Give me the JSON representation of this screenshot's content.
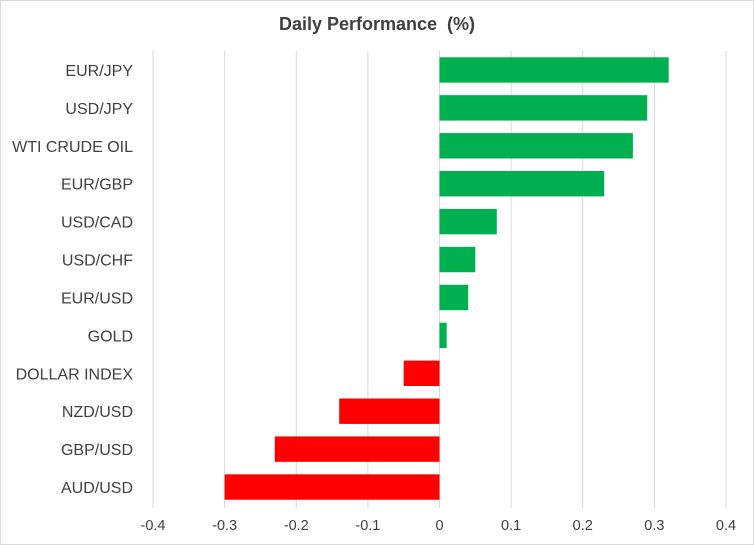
{
  "chart_data": {
    "type": "bar",
    "orientation": "horizontal",
    "title": "Daily Performance  (%)",
    "xlabel": "",
    "ylabel": "",
    "xlim": [
      -0.4,
      0.4
    ],
    "xticks": [
      "-0.4",
      "-0.3",
      "-0.2",
      "-0.1",
      "0",
      "0.1",
      "0.2",
      "0.3",
      "0.4"
    ],
    "grid": "vertical",
    "categories": [
      "EUR/JPY",
      "USD/JPY",
      "WTI CRUDE OIL",
      "EUR/GBP",
      "USD/CAD",
      "USD/CHF",
      "EUR/USD",
      "GOLD",
      "DOLLAR INDEX",
      "NZD/USD",
      "GBP/USD",
      "AUD/USD"
    ],
    "values": [
      0.32,
      0.29,
      0.27,
      0.23,
      0.08,
      0.05,
      0.04,
      0.01,
      -0.05,
      -0.14,
      -0.23,
      -0.3
    ],
    "colors": {
      "positive": "#00b050",
      "negative": "#ff0000",
      "grid": "#d9d9d9",
      "text": "#404040"
    }
  }
}
